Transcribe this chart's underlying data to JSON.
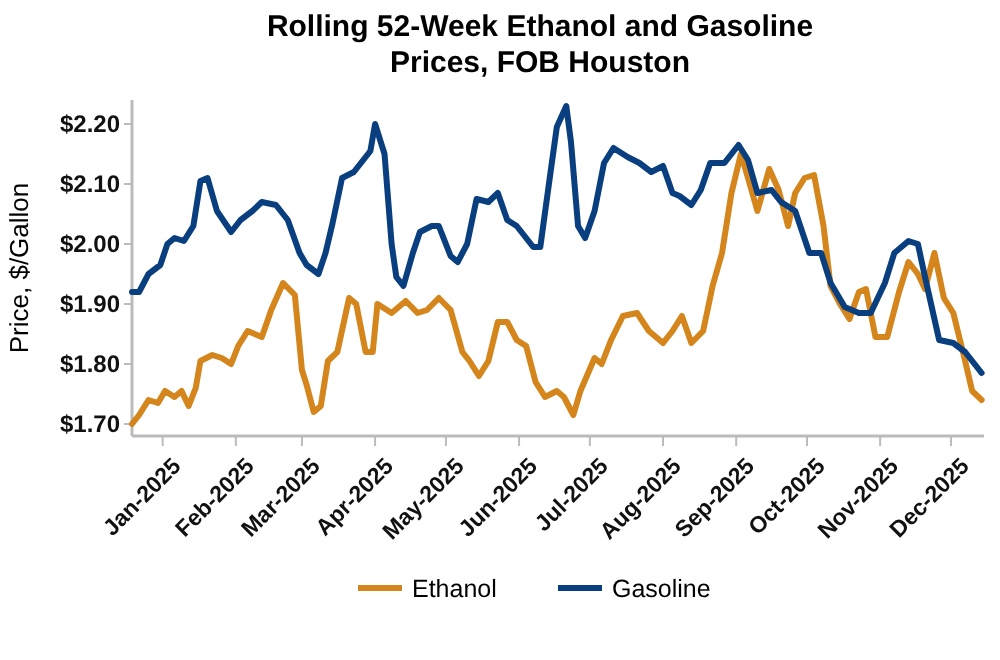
{
  "chart_data": {
    "type": "line",
    "title": "Rolling 52-Week Ethanol and Gasoline Prices, FOB Houston",
    "ylabel": "Price, $/Gallon",
    "xlim": [
      "2024-12-19",
      "2025-12-15"
    ],
    "xticks": [
      {
        "value": "2025-01-01",
        "label": "Jan-2025"
      },
      {
        "value": "2025-02-01",
        "label": "Feb-2025"
      },
      {
        "value": "2025-03-01",
        "label": "Mar-2025"
      },
      {
        "value": "2025-04-01",
        "label": "Apr-2025"
      },
      {
        "value": "2025-05-01",
        "label": "May-2025"
      },
      {
        "value": "2025-06-01",
        "label": "Jun-2025"
      },
      {
        "value": "2025-07-01",
        "label": "Jul-2025"
      },
      {
        "value": "2025-08-01",
        "label": "Aug-2025"
      },
      {
        "value": "2025-09-01",
        "label": "Sep-2025"
      },
      {
        "value": "2025-10-01",
        "label": "Oct-2025"
      },
      {
        "value": "2025-11-01",
        "label": "Nov-2025"
      },
      {
        "value": "2025-12-01",
        "label": "Dec-2025"
      }
    ],
    "ylim": [
      1.68,
      2.24
    ],
    "yticks": [
      {
        "value": 1.7,
        "label": "$1.70"
      },
      {
        "value": 1.8,
        "label": "$1.80"
      },
      {
        "value": 1.9,
        "label": "$1.90"
      },
      {
        "value": 2.0,
        "label": "$2.00"
      },
      {
        "value": 2.1,
        "label": "$2.10"
      },
      {
        "value": 2.2,
        "label": "$2.20"
      }
    ],
    "grid": false,
    "legend": "bottom",
    "line_style": "solid",
    "series": [
      {
        "name": "Ethanol",
        "color": "#d4861c",
        "x": [
          "2024-12-19",
          "2024-12-22",
          "2024-12-26",
          "2024-12-30",
          "2025-01-02",
          "2025-01-06",
          "2025-01-09",
          "2025-01-12",
          "2025-01-15",
          "2025-01-17",
          "2025-01-22",
          "2025-01-26",
          "2025-01-30",
          "2025-02-02",
          "2025-02-06",
          "2025-02-12",
          "2025-02-16",
          "2025-02-21",
          "2025-02-26",
          "2025-03-01",
          "2025-03-03",
          "2025-03-06",
          "2025-03-09",
          "2025-03-12",
          "2025-03-16",
          "2025-03-21",
          "2025-03-24",
          "2025-03-28",
          "2025-03-31",
          "2025-04-02",
          "2025-04-08",
          "2025-04-14",
          "2025-04-19",
          "2025-04-23",
          "2025-04-28",
          "2025-05-03",
          "2025-05-08",
          "2025-05-11",
          "2025-05-15",
          "2025-05-19",
          "2025-05-23",
          "2025-05-27",
          "2025-05-31",
          "2025-06-04",
          "2025-06-08",
          "2025-06-12",
          "2025-06-17",
          "2025-06-20",
          "2025-06-24",
          "2025-06-27",
          "2025-07-03",
          "2025-07-06",
          "2025-07-10",
          "2025-07-15",
          "2025-07-21",
          "2025-07-26",
          "2025-08-01",
          "2025-08-05",
          "2025-08-09",
          "2025-08-13",
          "2025-08-18",
          "2025-08-22",
          "2025-08-26",
          "2025-08-30",
          "2025-09-03",
          "2025-09-06",
          "2025-09-10",
          "2025-09-15",
          "2025-09-19",
          "2025-09-23",
          "2025-09-26",
          "2025-09-30",
          "2025-10-04",
          "2025-10-08",
          "2025-10-11",
          "2025-10-15",
          "2025-10-19",
          "2025-10-23",
          "2025-10-26",
          "2025-10-30",
          "2025-11-04",
          "2025-11-09",
          "2025-11-13",
          "2025-11-17",
          "2025-11-20",
          "2025-11-24",
          "2025-11-28",
          "2025-12-02",
          "2025-12-07",
          "2025-12-10",
          "2025-12-14"
        ],
        "values": [
          1.7,
          1.715,
          1.74,
          1.735,
          1.755,
          1.745,
          1.755,
          1.73,
          1.76,
          1.805,
          1.815,
          1.81,
          1.8,
          1.83,
          1.855,
          1.845,
          1.89,
          1.935,
          1.915,
          1.79,
          1.765,
          1.72,
          1.73,
          1.805,
          1.82,
          1.91,
          1.9,
          1.82,
          1.82,
          1.9,
          1.885,
          1.905,
          1.885,
          1.89,
          1.91,
          1.89,
          1.82,
          1.805,
          1.78,
          1.805,
          1.87,
          1.87,
          1.84,
          1.83,
          1.77,
          1.745,
          1.755,
          1.745,
          1.715,
          1.755,
          1.81,
          1.8,
          1.84,
          1.88,
          1.885,
          1.855,
          1.835,
          1.855,
          1.88,
          1.835,
          1.855,
          1.93,
          1.985,
          2.085,
          2.15,
          2.11,
          2.055,
          2.125,
          2.09,
          2.03,
          2.085,
          2.11,
          2.115,
          2.03,
          1.93,
          1.9,
          1.875,
          1.92,
          1.925,
          1.845,
          1.845,
          1.92,
          1.97,
          1.95,
          1.925,
          1.985,
          1.91,
          1.885,
          1.805,
          1.755,
          1.74
        ]
      },
      {
        "name": "Gasoline",
        "color": "#0a3f7f",
        "x": [
          "2024-12-19",
          "2024-12-22",
          "2024-12-26",
          "2024-12-31",
          "2025-01-03",
          "2025-01-06",
          "2025-01-10",
          "2025-01-14",
          "2025-01-17",
          "2025-01-20",
          "2025-01-24",
          "2025-01-30",
          "2025-02-03",
          "2025-02-08",
          "2025-02-12",
          "2025-02-18",
          "2025-02-23",
          "2025-02-28",
          "2025-03-03",
          "2025-03-08",
          "2025-03-11",
          "2025-03-14",
          "2025-03-18",
          "2025-03-23",
          "2025-03-27",
          "2025-03-30",
          "2025-04-01",
          "2025-04-05",
          "2025-04-08",
          "2025-04-10",
          "2025-04-13",
          "2025-04-17",
          "2025-04-20",
          "2025-04-25",
          "2025-04-28",
          "2025-05-03",
          "2025-05-06",
          "2025-05-10",
          "2025-05-14",
          "2025-05-19",
          "2025-05-23",
          "2025-05-27",
          "2025-05-31",
          "2025-06-04",
          "2025-06-07",
          "2025-06-10",
          "2025-06-14",
          "2025-06-17",
          "2025-06-21",
          "2025-06-23",
          "2025-06-26",
          "2025-06-29",
          "2025-07-03",
          "2025-07-07",
          "2025-07-11",
          "2025-07-17",
          "2025-07-22",
          "2025-07-27",
          "2025-08-01",
          "2025-08-05",
          "2025-08-08",
          "2025-08-13",
          "2025-08-17",
          "2025-08-21",
          "2025-08-27",
          "2025-09-02",
          "2025-09-06",
          "2025-09-10",
          "2025-09-16",
          "2025-09-20",
          "2025-09-26",
          "2025-10-02",
          "2025-10-07",
          "2025-10-11",
          "2025-10-17",
          "2025-10-23",
          "2025-10-28",
          "2025-11-03",
          "2025-11-07",
          "2025-11-13",
          "2025-11-17",
          "2025-11-20",
          "2025-11-26",
          "2025-12-02",
          "2025-12-07",
          "2025-12-14"
        ],
        "values": [
          1.92,
          1.92,
          1.95,
          1.965,
          2.0,
          2.01,
          2.005,
          2.03,
          2.105,
          2.11,
          2.055,
          2.02,
          2.04,
          2.055,
          2.07,
          2.065,
          2.04,
          1.985,
          1.965,
          1.95,
          1.985,
          2.035,
          2.11,
          2.12,
          2.14,
          2.155,
          2.2,
          2.15,
          2.0,
          1.945,
          1.93,
          1.985,
          2.02,
          2.03,
          2.03,
          1.98,
          1.97,
          2.0,
          2.075,
          2.07,
          2.085,
          2.04,
          2.03,
          2.01,
          1.995,
          1.995,
          2.11,
          2.195,
          2.23,
          2.17,
          2.03,
          2.01,
          2.055,
          2.135,
          2.16,
          2.145,
          2.135,
          2.12,
          2.13,
          2.085,
          2.08,
          2.065,
          2.09,
          2.135,
          2.135,
          2.165,
          2.14,
          2.085,
          2.09,
          2.07,
          2.055,
          1.985,
          1.985,
          1.935,
          1.895,
          1.885,
          1.885,
          1.935,
          1.985,
          2.005,
          2.0,
          1.945,
          1.84,
          1.835,
          1.82,
          1.785
        ]
      }
    ]
  }
}
